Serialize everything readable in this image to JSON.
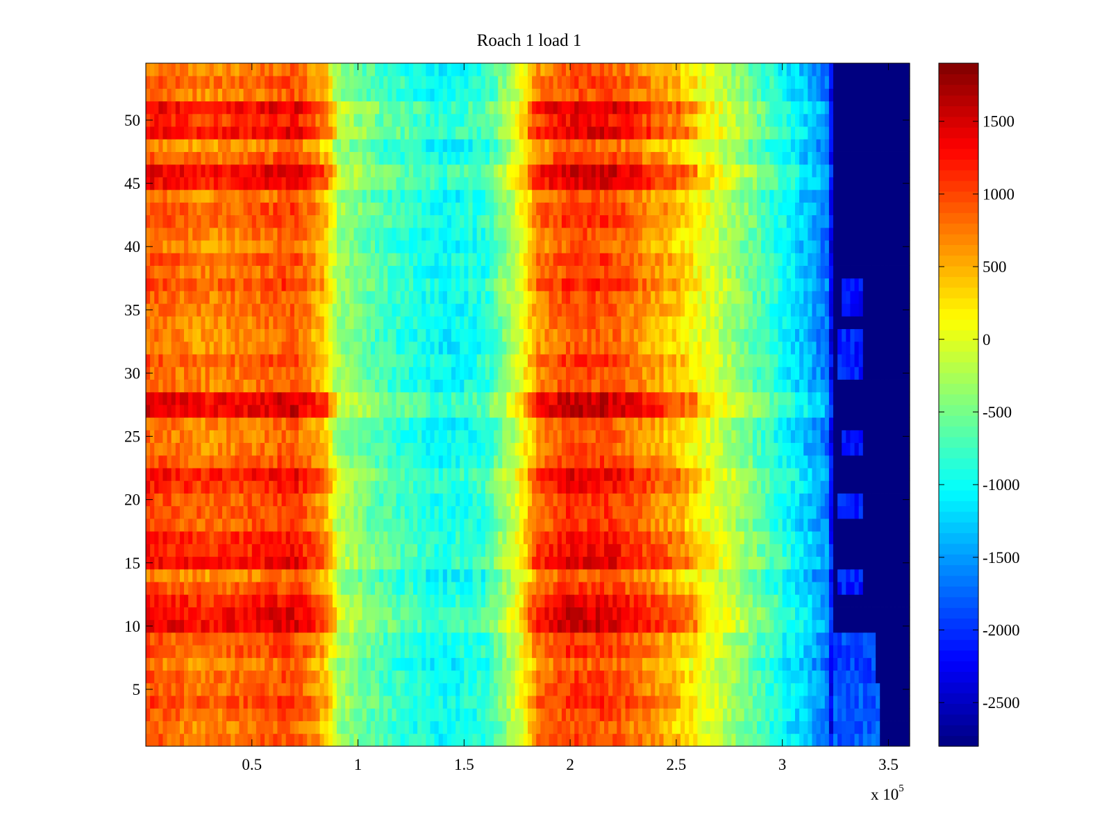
{
  "chart_data": {
    "type": "heatmap",
    "title": "Roach 1 load 1",
    "xlabel": "",
    "ylabel": "",
    "x_exponent_label": "x 10",
    "x_exponent_power": "5",
    "colormap": "jet",
    "xlim": [
      0,
      3.6
    ],
    "ylim": [
      0.5,
      54.5
    ],
    "clim": [
      -2800,
      1900
    ],
    "x_ticks": [
      {
        "value": 0.5,
        "label": "0.5"
      },
      {
        "value": 1,
        "label": "1"
      },
      {
        "value": 1.5,
        "label": "1.5"
      },
      {
        "value": 2,
        "label": "2"
      },
      {
        "value": 2.5,
        "label": "2.5"
      },
      {
        "value": 3,
        "label": "3"
      },
      {
        "value": 3.5,
        "label": "3.5"
      }
    ],
    "y_ticks": [
      {
        "value": 5,
        "label": "5"
      },
      {
        "value": 10,
        "label": "10"
      },
      {
        "value": 15,
        "label": "15"
      },
      {
        "value": 20,
        "label": "20"
      },
      {
        "value": 25,
        "label": "25"
      },
      {
        "value": 30,
        "label": "30"
      },
      {
        "value": 35,
        "label": "35"
      },
      {
        "value": 40,
        "label": "40"
      },
      {
        "value": 45,
        "label": "45"
      },
      {
        "value": 50,
        "label": "50"
      }
    ],
    "colorbar_ticks": [
      {
        "value": 1500,
        "label": "1500"
      },
      {
        "value": 1000,
        "label": "1000"
      },
      {
        "value": 500,
        "label": "500"
      },
      {
        "value": 0,
        "label": "0"
      },
      {
        "value": -500,
        "label": "-500"
      },
      {
        "value": -1000,
        "label": "-1000"
      },
      {
        "value": -1500,
        "label": "-1500"
      },
      {
        "value": -2000,
        "label": "-2000"
      },
      {
        "value": -2500,
        "label": "-2500"
      }
    ],
    "rows": 54,
    "x_band_profile": [
      {
        "x": 0.0,
        "value": 900
      },
      {
        "x": 0.3,
        "value": 700
      },
      {
        "x": 0.5,
        "value": 800
      },
      {
        "x": 0.7,
        "value": 950
      },
      {
        "x": 0.85,
        "value": 400
      },
      {
        "x": 0.9,
        "value": -300
      },
      {
        "x": 1.1,
        "value": -700
      },
      {
        "x": 1.4,
        "value": -1050
      },
      {
        "x": 1.6,
        "value": -900
      },
      {
        "x": 1.75,
        "value": -100
      },
      {
        "x": 1.85,
        "value": 700
      },
      {
        "x": 2.0,
        "value": 1000
      },
      {
        "x": 2.2,
        "value": 950
      },
      {
        "x": 2.5,
        "value": 400
      },
      {
        "x": 2.8,
        "value": -400
      },
      {
        "x": 3.1,
        "value": -1300
      },
      {
        "x": 3.22,
        "value": -1700
      },
      {
        "x": 3.24,
        "value": -2800
      },
      {
        "x": 3.6,
        "value": -2800
      }
    ],
    "hot_rows": [
      10,
      11,
      12,
      15,
      16,
      17,
      21,
      22,
      27,
      28,
      45,
      46,
      49,
      50,
      51
    ],
    "residual_blue_patches": [
      {
        "row_start": 1,
        "row_end": 5,
        "x_start": 3.24,
        "x_end": 3.45,
        "value": -1800
      },
      {
        "row_start": 6,
        "row_end": 9,
        "x_start": 3.24,
        "x_end": 3.43,
        "value": -1900
      },
      {
        "row_start": 13,
        "row_end": 14,
        "x_start": 3.27,
        "x_end": 3.38,
        "value": -2100
      },
      {
        "row_start": 19,
        "row_end": 20,
        "x_start": 3.27,
        "x_end": 3.38,
        "value": -2100
      },
      {
        "row_start": 24,
        "row_end": 25,
        "x_start": 3.28,
        "x_end": 3.37,
        "value": -2200
      },
      {
        "row_start": 30,
        "row_end": 33,
        "x_start": 3.27,
        "x_end": 3.38,
        "value": -2100
      },
      {
        "row_start": 35,
        "row_end": 37,
        "x_start": 3.28,
        "x_end": 3.37,
        "value": -2200
      }
    ]
  }
}
